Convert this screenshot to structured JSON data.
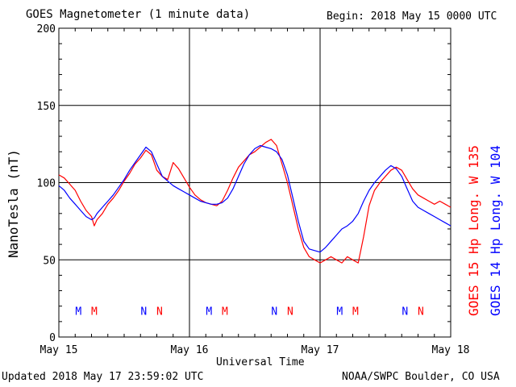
{
  "header": {
    "title": "GOES Magnetometer (1 minute data)",
    "begin": "Begin:  2018 May 15 0000 UTC"
  },
  "footer": {
    "updated": "Updated 2018 May 17 23:59:02 UTC",
    "credit": "NOAA/SWPC Boulder, CO USA"
  },
  "colors": {
    "red_series": "#ff0000",
    "blue_series": "#0000ff",
    "grid": "#000000"
  },
  "chart_data": {
    "type": "line",
    "title": "GOES Magnetometer (1 minute data)",
    "xlabel": "Universal Time",
    "ylabel": "NanoTesla (nT)",
    "xlim": [
      0,
      72
    ],
    "ylim": [
      0,
      200
    ],
    "grid": true,
    "x_ticks": [
      {
        "x": 0,
        "label": "May 15"
      },
      {
        "x": 24,
        "label": "May 16"
      },
      {
        "x": 48,
        "label": "May 17"
      },
      {
        "x": 72,
        "label": "May 18"
      }
    ],
    "y_ticks": [
      0,
      50,
      100,
      150,
      200
    ],
    "legend_position": "right, rotated",
    "series": [
      {
        "name": "GOES 15 Hp  Long. W 135",
        "color": "#ff0000",
        "x": [
          0,
          1,
          2,
          3,
          4,
          5,
          6,
          6.5,
          7,
          8,
          9,
          10,
          11,
          12,
          13,
          14,
          15,
          16,
          17,
          18,
          19,
          20,
          21,
          22,
          23,
          24,
          25,
          26,
          27,
          28,
          29,
          30,
          31,
          32,
          33,
          34,
          35,
          36,
          37,
          38,
          39,
          40,
          41,
          42,
          43,
          44,
          45,
          46,
          47,
          48,
          49,
          50,
          51,
          52,
          53,
          54,
          55,
          56,
          57,
          58,
          59,
          60,
          61,
          62,
          63,
          64,
          65,
          66,
          67,
          68,
          69,
          70,
          71,
          72
        ],
        "y": [
          105,
          103,
          99,
          95,
          88,
          82,
          78,
          72,
          76,
          80,
          86,
          90,
          95,
          101,
          106,
          112,
          116,
          121,
          118,
          108,
          104,
          102,
          113,
          109,
          103,
          97,
          92,
          89,
          87,
          86,
          85,
          88,
          95,
          103,
          110,
          114,
          118,
          120,
          123,
          126,
          128,
          124,
          112,
          100,
          85,
          70,
          58,
          52,
          50,
          48,
          50,
          52,
          50,
          48,
          52,
          50,
          48,
          65,
          85,
          95,
          100,
          104,
          108,
          110,
          108,
          102,
          96,
          92,
          90,
          88,
          86,
          88,
          86,
          84
        ]
      },
      {
        "name": "GOES 14 Hp  Long. W 104",
        "color": "#0000ff",
        "x": [
          0,
          1,
          2,
          3,
          4,
          5,
          6,
          6.5,
          7,
          8,
          9,
          10,
          11,
          12,
          13,
          14,
          15,
          16,
          17,
          18,
          19,
          20,
          21,
          22,
          23,
          24,
          25,
          26,
          27,
          28,
          29,
          30,
          31,
          32,
          33,
          34,
          35,
          36,
          37,
          38,
          39,
          40,
          41,
          42,
          43,
          44,
          45,
          46,
          47,
          48,
          49,
          50,
          51,
          52,
          53,
          54,
          55,
          56,
          57,
          58,
          59,
          60,
          61,
          62,
          63,
          64,
          65,
          66,
          67,
          68,
          69,
          70,
          71,
          72
        ],
        "y": [
          98,
          95,
          90,
          86,
          82,
          78,
          76,
          77,
          80,
          84,
          88,
          92,
          97,
          102,
          108,
          113,
          118,
          123,
          120,
          112,
          104,
          101,
          98,
          96,
          94,
          92,
          90,
          88,
          87,
          86,
          86,
          87,
          90,
          96,
          104,
          112,
          118,
          122,
          124,
          123,
          122,
          120,
          115,
          105,
          90,
          75,
          62,
          57,
          56,
          55,
          58,
          62,
          66,
          70,
          72,
          75,
          80,
          88,
          95,
          100,
          104,
          108,
          111,
          109,
          104,
          96,
          88,
          84,
          82,
          80,
          78,
          76,
          74,
          72
        ]
      }
    ],
    "annotations": [
      {
        "label": "M",
        "x": 3.6,
        "color": "#0000ff"
      },
      {
        "label": "M",
        "x": 6.5,
        "color": "#ff0000"
      },
      {
        "label": "N",
        "x": 15.6,
        "color": "#0000ff"
      },
      {
        "label": "N",
        "x": 18.5,
        "color": "#ff0000"
      },
      {
        "label": "M",
        "x": 27.6,
        "color": "#0000ff"
      },
      {
        "label": "M",
        "x": 30.5,
        "color": "#ff0000"
      },
      {
        "label": "N",
        "x": 39.6,
        "color": "#0000ff"
      },
      {
        "label": "N",
        "x": 42.5,
        "color": "#ff0000"
      },
      {
        "label": "M",
        "x": 51.6,
        "color": "#0000ff"
      },
      {
        "label": "M",
        "x": 54.5,
        "color": "#ff0000"
      },
      {
        "label": "N",
        "x": 63.6,
        "color": "#0000ff"
      },
      {
        "label": "N",
        "x": 66.5,
        "color": "#ff0000"
      }
    ],
    "annotation_y": 17
  }
}
